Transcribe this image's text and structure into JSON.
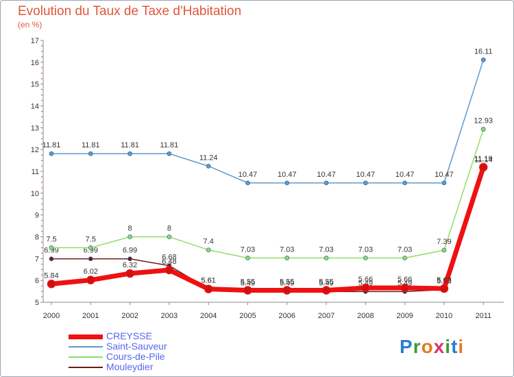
{
  "title": "Evolution du Taux de Taxe d'Habitation",
  "subtitle": "(en %)",
  "logo": {
    "letters": [
      "P",
      "r",
      "o",
      "x",
      "i",
      "t",
      "i"
    ],
    "colors": [
      "#2a7fd4",
      "#3a9a3a",
      "#e87a1e",
      "#d6336c",
      "#3a9a3a",
      "#2a7fd4",
      "#e87a1e"
    ]
  },
  "chart_data": {
    "type": "line",
    "x": [
      "2000",
      "2001",
      "2002",
      "2003",
      "2004",
      "2005",
      "2006",
      "2007",
      "2008",
      "2009",
      "2010",
      "2011"
    ],
    "ylim": [
      5,
      17
    ],
    "yticks": [
      "5",
      "6",
      "7",
      "8",
      "9",
      "10",
      "11",
      "12",
      "13",
      "14",
      "15",
      "16",
      "17"
    ],
    "series": [
      {
        "name": "Mouleydier",
        "color": "#6b1a1a",
        "width": 1.5,
        "values": [
          6.99,
          6.99,
          6.99,
          6.68,
          5.61,
          5.49,
          5.49,
          5.49,
          5.49,
          5.49,
          5.58,
          11.14
        ],
        "labels": [
          "6.99",
          "6.99",
          "6.99",
          "6.68",
          "5.61",
          "5.49",
          "5.49",
          "5.49",
          "5.49",
          "5.49",
          "5.58",
          "11.14"
        ]
      },
      {
        "name": "Cours-de-Pile",
        "color": "#90dd66",
        "width": 1.5,
        "values": [
          7.5,
          7.5,
          8,
          8,
          7.4,
          7.03,
          7.03,
          7.03,
          7.03,
          7.03,
          7.39,
          12.93
        ],
        "labels": [
          "7.5",
          "7.5",
          "8",
          "8",
          "7.4",
          "7.03",
          "7.03",
          "7.03",
          "7.03",
          "7.03",
          "7.39",
          "12.93"
        ]
      },
      {
        "name": "Saint-Sauveur",
        "color": "#5e9acb",
        "width": 1.5,
        "values": [
          11.81,
          11.81,
          11.81,
          11.81,
          11.24,
          10.47,
          10.47,
          10.47,
          10.47,
          10.47,
          10.47,
          16.11
        ],
        "labels": [
          "11.81",
          "11.81",
          "11.81",
          "11.81",
          "11.24",
          "10.47",
          "10.47",
          "10.47",
          "10.47",
          "10.47",
          "10.47",
          "16.11"
        ]
      },
      {
        "name": "CREYSSE",
        "color": "#ee1111",
        "width": 7,
        "values": [
          5.84,
          6.02,
          6.32,
          6.48,
          5.61,
          5.55,
          5.55,
          5.55,
          5.66,
          5.66,
          5.63,
          11.19
        ],
        "labels": [
          "5.84",
          "6.02",
          "6.32",
          "6.48",
          "5.61",
          "5.55",
          "5.55",
          "5.55",
          "5.66",
          "5.66",
          "5.63",
          "11.19"
        ]
      }
    ],
    "legend": [
      "CREYSSE",
      "Saint-Sauveur",
      "Cours-de-Pile",
      "Mouleydier"
    ],
    "legend_placement": "bottom-left",
    "grid": false
  }
}
